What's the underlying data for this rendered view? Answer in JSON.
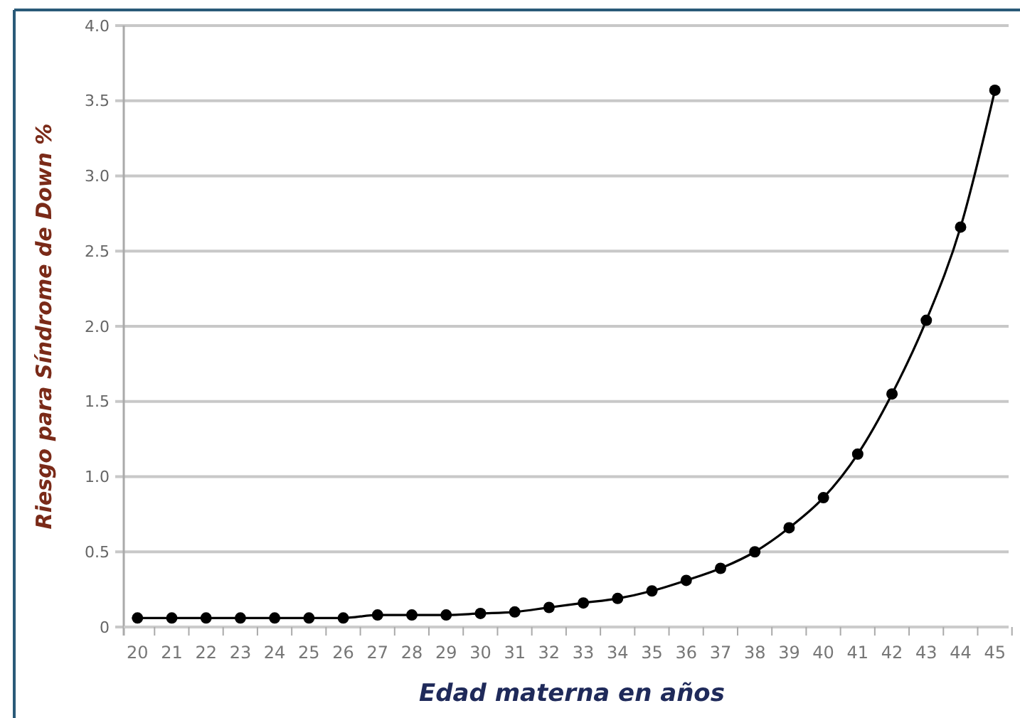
{
  "chart_data": {
    "type": "line",
    "xlabel": "Edad materna en años",
    "ylabel": "Riesgo para Síndrome de Down %",
    "categories": [
      "20",
      "21",
      "22",
      "23",
      "24",
      "25",
      "26",
      "27",
      "28",
      "29",
      "30",
      "31",
      "32",
      "33",
      "34",
      "35",
      "36",
      "37",
      "38",
      "39",
      "40",
      "41",
      "42",
      "43",
      "44",
      "45"
    ],
    "series": [
      {
        "color": "#000000",
        "values": [
          0.06,
          0.06,
          0.06,
          0.06,
          0.06,
          0.06,
          0.06,
          0.08,
          0.08,
          0.08,
          0.09,
          0.1,
          0.13,
          0.16,
          0.19,
          0.24,
          0.31,
          0.39,
          0.5,
          0.66,
          0.86,
          1.15,
          1.55,
          2.04,
          2.66,
          3.57
        ]
      }
    ],
    "ylim": [
      0,
      4
    ],
    "yticks": [
      {
        "value": 0,
        "label": "0"
      },
      0.5,
      {
        "value": 1,
        "label": "1.0"
      },
      1.5,
      {
        "value": 2,
        "label": "2.0"
      },
      2.5,
      {
        "value": 3,
        "label": "3.0"
      },
      3.5,
      {
        "value": 4,
        "label": "4.0"
      }
    ],
    "grid": "y",
    "marker": "circle",
    "line_style": "solid"
  }
}
